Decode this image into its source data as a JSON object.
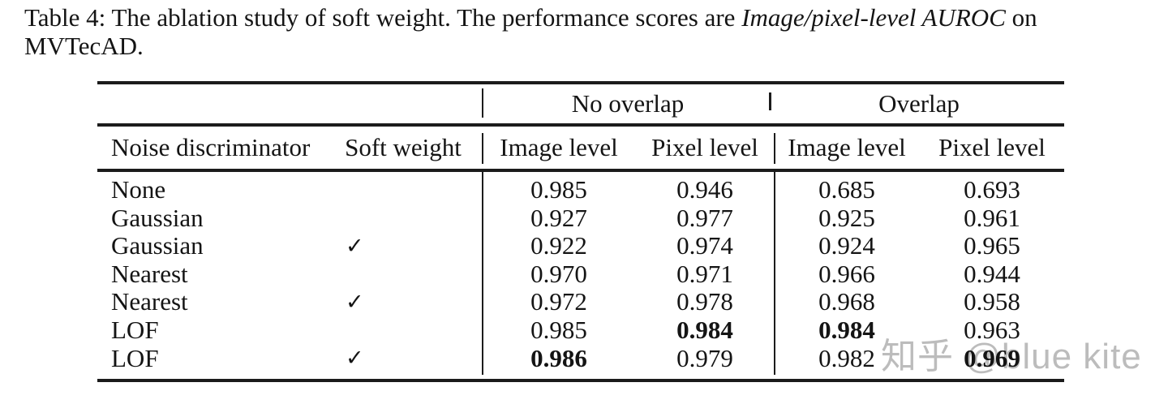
{
  "caption": {
    "line1": {
      "prefix": "Table 4: The ablation study of soft weight. The performance scores are ",
      "italic": "Image/pixel-level AUROC",
      "suffix": " on"
    },
    "line2": "MVTecAD."
  },
  "table": {
    "group_header": {
      "no_overlap": "No overlap",
      "overlap": "Overlap"
    },
    "columns": [
      "Noise discriminator",
      "Soft weight",
      "Image level",
      "Pixel level",
      "Image level",
      "Pixel level"
    ],
    "check_glyph": "✓",
    "rows": [
      {
        "discriminator": "None",
        "check": "",
        "values": [
          {
            "v": "0.985",
            "bold": false
          },
          {
            "v": "0.946",
            "bold": false
          },
          {
            "v": "0.685",
            "bold": false
          },
          {
            "v": "0.693",
            "bold": false
          }
        ]
      },
      {
        "discriminator": "Gaussian",
        "check": "",
        "values": [
          {
            "v": "0.927",
            "bold": false
          },
          {
            "v": "0.977",
            "bold": false
          },
          {
            "v": "0.925",
            "bold": false
          },
          {
            "v": "0.961",
            "bold": false
          }
        ]
      },
      {
        "discriminator": "Gaussian",
        "check": "✓",
        "values": [
          {
            "v": "0.922",
            "bold": false
          },
          {
            "v": "0.974",
            "bold": false
          },
          {
            "v": "0.924",
            "bold": false
          },
          {
            "v": "0.965",
            "bold": false
          }
        ]
      },
      {
        "discriminator": "Nearest",
        "check": "",
        "values": [
          {
            "v": "0.970",
            "bold": false
          },
          {
            "v": "0.971",
            "bold": false
          },
          {
            "v": "0.966",
            "bold": false
          },
          {
            "v": "0.944",
            "bold": false
          }
        ]
      },
      {
        "discriminator": "Nearest",
        "check": "✓",
        "values": [
          {
            "v": "0.972",
            "bold": false
          },
          {
            "v": "0.978",
            "bold": false
          },
          {
            "v": "0.968",
            "bold": false
          },
          {
            "v": "0.958",
            "bold": false
          }
        ]
      },
      {
        "discriminator": "LOF",
        "check": "",
        "values": [
          {
            "v": "0.985",
            "bold": false
          },
          {
            "v": "0.984",
            "bold": true
          },
          {
            "v": "0.984",
            "bold": true
          },
          {
            "v": "0.963",
            "bold": false
          }
        ]
      },
      {
        "discriminator": "LOF",
        "check": "✓",
        "values": [
          {
            "v": "0.986",
            "bold": true
          },
          {
            "v": "0.979",
            "bold": false
          },
          {
            "v": "0.982",
            "bold": false
          },
          {
            "v": "0.969",
            "bold": true
          }
        ]
      }
    ]
  },
  "watermark": {
    "text": "知乎 @blue kite",
    "color": "#bcbcbc"
  }
}
